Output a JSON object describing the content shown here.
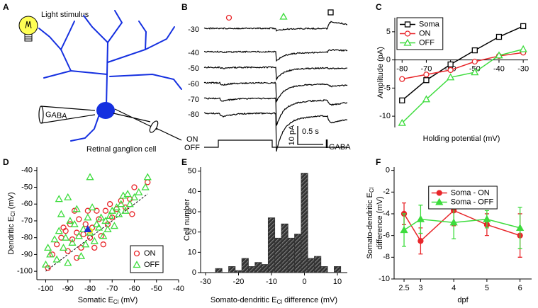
{
  "panel_letters": [
    "A",
    "B",
    "C",
    "D",
    "E",
    "F"
  ],
  "diagram": {
    "stimulus_label": "Light stimulus",
    "pipette_label": "GABA",
    "cell_label": "Retinal ganglion cell"
  },
  "recordings": {
    "holding_potentials": [
      -30,
      -40,
      -50,
      -60,
      -70,
      -80
    ],
    "on_label": "ON",
    "off_label": "OFF",
    "scale_current": "10 pA",
    "scale_time": "0.5 s",
    "gaba_label": "GABA"
  },
  "chart_data": [
    {
      "type": "line",
      "x": [
        -80,
        -70,
        -60,
        -50,
        -40,
        -30
      ],
      "series": [
        {
          "name": "Soma",
          "color": "#000000",
          "marker": "square",
          "filled": false,
          "values": [
            -7.2,
            -3.6,
            -0.8,
            1.7,
            4.1,
            6.0
          ]
        },
        {
          "name": "ON",
          "color": "#e8262a",
          "marker": "circle",
          "filled": false,
          "values": [
            -3.4,
            -2.6,
            -1.8,
            -0.3,
            0.7,
            1.3
          ]
        },
        {
          "name": "OFF",
          "color": "#3ddc3d",
          "marker": "triangle",
          "filled": false,
          "values": [
            -11.2,
            -7.0,
            -3.1,
            -2.2,
            0.8,
            1.9
          ]
        }
      ],
      "xlim": [
        -83,
        -28
      ],
      "ylim": [
        -12,
        7.5
      ],
      "xticks": [
        -80,
        -70,
        -60,
        -50,
        -40,
        -30
      ],
      "yticks": [
        -10,
        -5,
        0,
        5
      ],
      "x_axis_position": "zero",
      "x_label": "Holding potential (mV)",
      "y_label": "Amplitude (pA)",
      "legend": "upper-left"
    },
    {
      "type": "scatter",
      "series": [
        {
          "name": "ON",
          "color": "#e8262a",
          "marker": "circle",
          "filled": false,
          "x": [
            -99,
            -97,
            -95,
            -93,
            -92,
            -90,
            -89,
            -88,
            -87,
            -86,
            -85,
            -84,
            -83,
            -82,
            -81,
            -80,
            -79,
            -78,
            -77,
            -76,
            -75,
            -74,
            -73,
            -72,
            -71,
            -70,
            -68,
            -66,
            -64,
            -62,
            -61,
            -60,
            -54,
            -86,
            -91
          ],
          "values": [
            -98,
            -90,
            -84,
            -80,
            -74,
            -88,
            -72,
            -81,
            -64,
            -77,
            -69,
            -86,
            -78,
            -72,
            -64,
            -80,
            -74,
            -86,
            -64,
            -69,
            -79,
            -84,
            -64,
            -72,
            -60,
            -68,
            -63,
            -58,
            -62,
            -57,
            -66,
            -50,
            -47,
            -92,
            -76
          ]
        },
        {
          "name": "OFF",
          "color": "#3ddc3d",
          "marker": "triangle",
          "filled": false,
          "x": [
            -100,
            -99,
            -98,
            -96,
            -95,
            -94,
            -93,
            -92,
            -91,
            -90,
            -89,
            -88,
            -87,
            -86,
            -85,
            -84,
            -83,
            -82,
            -81,
            -80,
            -79,
            -78,
            -77,
            -76,
            -75,
            -74,
            -73,
            -72,
            -71,
            -70,
            -69,
            -68,
            -67,
            -66,
            -65,
            -64,
            -63,
            -62,
            -60,
            -58,
            -55,
            -54,
            -94,
            -90,
            -80
          ],
          "values": [
            -96,
            -86,
            -90,
            -81,
            -93,
            -76,
            -66,
            -86,
            -80,
            -95,
            -70,
            -83,
            -72,
            -63,
            -79,
            -91,
            -75,
            -84,
            -68,
            -77,
            -62,
            -82,
            -72,
            -74,
            -68,
            -79,
            -70,
            -75,
            -67,
            -64,
            -73,
            -62,
            -66,
            -60,
            -55,
            -64,
            -54,
            -60,
            -56,
            -53,
            -50,
            -44,
            -57,
            -56,
            -44
          ]
        },
        {
          "color": "#f2e21a",
          "marker": "circle",
          "filled": true,
          "x": [
            -80
          ],
          "values": [
            -76
          ]
        },
        {
          "color": "#1d2fd0",
          "marker": "triangle",
          "filled": true,
          "x": [
            -81
          ],
          "values": [
            -75
          ]
        }
      ],
      "xlim": [
        -104,
        -40
      ],
      "ylim": [
        -105,
        -38
      ],
      "xticks": [
        -100,
        -90,
        -80,
        -70,
        -60,
        -50,
        -40
      ],
      "yticks": [
        -40,
        -50,
        -60,
        -70,
        -80,
        -90,
        -100
      ],
      "diagonal": true,
      "x_label": [
        "Somatic E",
        "Cl",
        " (mV)"
      ],
      "y_label": [
        "Dendritic E",
        "Cl",
        " (mV)"
      ],
      "legend": "lower-right"
    },
    {
      "type": "histogram",
      "color": "#333333",
      "hatch": true,
      "bins": [
        -27,
        -25,
        -23,
        -21,
        -19,
        -17,
        -15,
        -13,
        -11,
        -9,
        -7,
        -5,
        -3,
        -1,
        1,
        3,
        5,
        7,
        9,
        11
      ],
      "values": [
        2,
        0,
        3,
        1,
        7,
        3,
        5,
        4,
        27,
        17,
        24,
        17,
        19,
        49,
        7,
        8,
        3,
        0,
        3
      ],
      "xlim": [
        -31.5,
        13
      ],
      "ylim": [
        0,
        52
      ],
      "xticks": [
        -30,
        -20,
        -10,
        0,
        10
      ],
      "yticks": [
        0,
        10,
        20,
        30,
        40,
        50
      ],
      "x_label": [
        "Somato-dendritic E",
        "Cl",
        " difference (mV)"
      ],
      "y_label": "Cell number"
    },
    {
      "type": "line",
      "x": [
        2.5,
        3,
        4,
        5,
        6
      ],
      "series": [
        {
          "name": "Soma - ON",
          "color": "#e8262a",
          "marker": "circle",
          "filled": true,
          "values": [
            -4.0,
            -6.5,
            -3.7,
            -5.0,
            -6.0
          ],
          "errors": [
            1.0,
            1.2,
            1.4,
            1.0,
            2.0
          ]
        },
        {
          "name": "Soma - OFF",
          "color": "#3ddc3d",
          "marker": "triangle",
          "filled": true,
          "values": [
            -5.5,
            -4.5,
            -4.8,
            -4.5,
            -5.3
          ],
          "errors": [
            1.5,
            1.3,
            1.5,
            0.8,
            1.9
          ]
        }
      ],
      "xlim": [
        2.2,
        6.35
      ],
      "ylim": [
        -10,
        0.3
      ],
      "xticks": [
        2.5,
        3,
        4,
        5,
        6
      ],
      "yticks": [
        0,
        -2,
        -4,
        -6,
        -8,
        -10
      ],
      "x_axis_position": "bottom",
      "x_label": "dpf",
      "y_label": [
        "Somato-dendritic E",
        "Cl"
      ],
      "y_label_2": "difference (mV)",
      "legend": "upper-center"
    }
  ]
}
